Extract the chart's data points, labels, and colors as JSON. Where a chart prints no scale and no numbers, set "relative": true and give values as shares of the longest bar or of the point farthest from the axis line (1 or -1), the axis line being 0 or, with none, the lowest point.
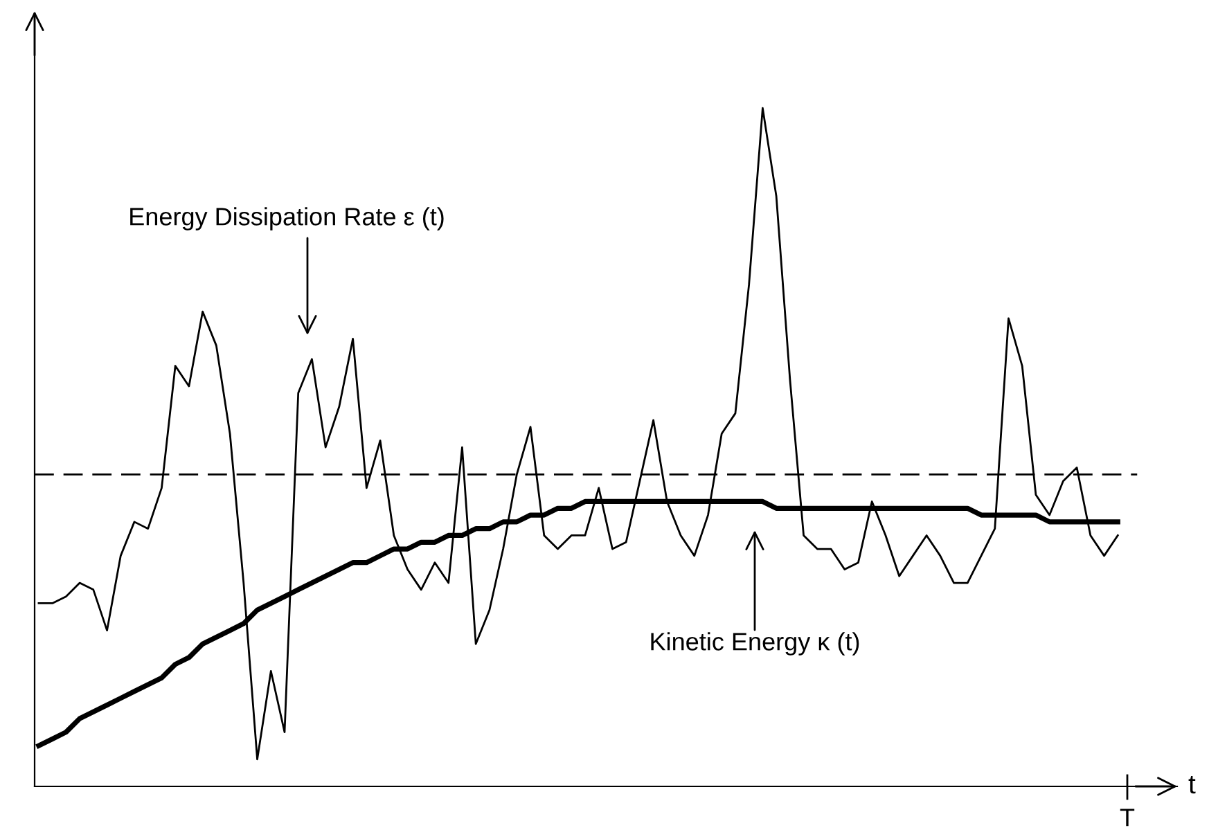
{
  "chart_data": {
    "type": "line",
    "relative": true,
    "xlabel": "t",
    "marker": "none",
    "categories": [
      null,
      null,
      null,
      null,
      null,
      null,
      null,
      null,
      null,
      null,
      null,
      null,
      null,
      null,
      null,
      null,
      null,
      null,
      null,
      null,
      null,
      null,
      null,
      null,
      null,
      null,
      null,
      null,
      null,
      null,
      null,
      null,
      null,
      null,
      null,
      null,
      null,
      null,
      null,
      null,
      null,
      null,
      null,
      null,
      null,
      null,
      null,
      null,
      null,
      null,
      null,
      null,
      null,
      null,
      null,
      null,
      null,
      null,
      null,
      null,
      null,
      null,
      null,
      null,
      null,
      null,
      null,
      null,
      null,
      null,
      null,
      null,
      null,
      null,
      null,
      null,
      null,
      null,
      null,
      null
    ],
    "series": [
      {
        "color": "#000000",
        "values": [
          0.27,
          0.27,
          0.28,
          0.3,
          0.29,
          0.23,
          0.34,
          0.39,
          0.38,
          0.44,
          0.62,
          0.59,
          0.7,
          0.65,
          0.52,
          0.3,
          0.04,
          0.17,
          0.08,
          0.58,
          0.63,
          0.5,
          0.56,
          0.66,
          0.44,
          0.51,
          0.37,
          0.32,
          0.29,
          0.33,
          0.3,
          0.5,
          0.21,
          0.26,
          0.35,
          0.46,
          0.53,
          0.37,
          0.35,
          0.37,
          0.37,
          0.44,
          0.35,
          0.36,
          0.45,
          0.54,
          0.42,
          0.37,
          0.34,
          0.4,
          0.52,
          0.55,
          0.74,
          1,
          0.87,
          0.6,
          0.37,
          0.35,
          0.35,
          0.32,
          0.33,
          0.42,
          0.37,
          0.31,
          0.34,
          0.37,
          0.34,
          0.3,
          0.3,
          0.34,
          0.38,
          0.69,
          0.62,
          0.43,
          0.4,
          0.45,
          0.47,
          0.37,
          0.34,
          0.37
        ]
      },
      {
        "color": "#000000",
        "values": [
          0.06,
          0.07,
          0.08,
          0.1,
          0.11,
          0.12,
          0.13,
          0.14,
          0.15,
          0.16,
          0.18,
          0.19,
          0.21,
          0.22,
          0.23,
          0.24,
          0.26,
          0.27,
          0.28,
          0.29,
          0.3,
          0.31,
          0.32,
          0.33,
          0.33,
          0.34,
          0.35,
          0.35,
          0.36,
          0.36,
          0.37,
          0.37,
          0.38,
          0.38,
          0.39,
          0.39,
          0.4,
          0.4,
          0.41,
          0.41,
          0.42,
          0.42,
          0.42,
          0.42,
          0.42,
          0.42,
          0.42,
          0.42,
          0.42,
          0.42,
          0.42,
          0.42,
          0.42,
          0.42,
          0.41,
          0.41,
          0.41,
          0.41,
          0.41,
          0.41,
          0.41,
          0.41,
          0.41,
          0.41,
          0.41,
          0.41,
          0.41,
          0.41,
          0.41,
          0.4,
          0.4,
          0.4,
          0.4,
          0.4,
          0.39,
          0.39,
          0.39,
          0.39,
          0.39,
          0.39
        ]
      }
    ],
    "ref_lines": [
      {
        "axis": "y",
        "value": 0.46,
        "color": "#000000",
        "line_style": "dashed"
      }
    ],
    "annotations": [
      "Energy Dissipation Rate ε (t)",
      "Kinetic Energy κ (t)",
      "T"
    ]
  }
}
